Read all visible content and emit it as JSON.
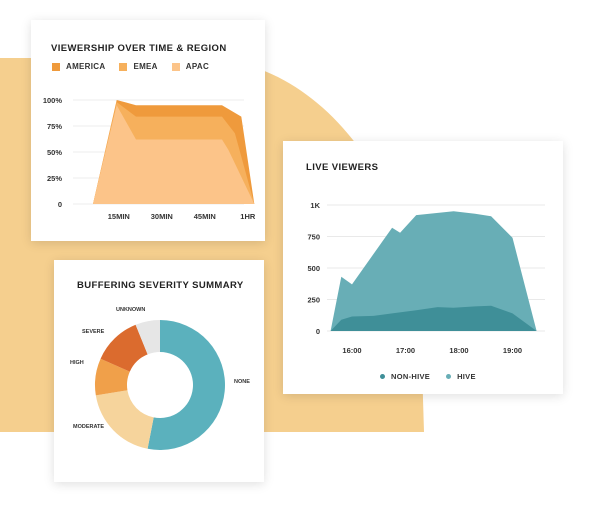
{
  "colors": {
    "background_shape": "#f5cf8e",
    "america": "#ef9a3c",
    "emea": "#f6b05c",
    "apac": "#fcc489",
    "non_hive": "#3f8f98",
    "hive": "#68aeb6",
    "donut_none": "#5bb1bd",
    "donut_moderate": "#f6d49c",
    "donut_high": "#f0a04a",
    "donut_severe": "#db6b2e",
    "donut_unknown": "#e6e6e6"
  },
  "chart_data": [
    {
      "type": "area",
      "title": "VIEWERSHIP OVER TIME & REGION",
      "categories": [
        "15MIN",
        "30MIN",
        "45MIN",
        "1HR"
      ],
      "y_ticks": [
        "100%",
        "75%",
        "50%",
        "25%",
        "0"
      ],
      "ylim": [
        0,
        100
      ],
      "legend": [
        "AMERICA",
        "EMEA",
        "APAC"
      ],
      "series": [
        {
          "name": "AMERICA",
          "x": [
            0,
            0.55,
            1,
            2,
            3,
            3.45,
            3.75
          ],
          "y": [
            0,
            100,
            95,
            95,
            95,
            84,
            0
          ]
        },
        {
          "name": "EMEA",
          "x": [
            0,
            0.55,
            1,
            2,
            3,
            3.3,
            3.75
          ],
          "y": [
            0,
            98,
            84,
            84,
            84,
            68,
            0
          ]
        },
        {
          "name": "APAC",
          "x": [
            0,
            0.55,
            1,
            2,
            3,
            3.15,
            3.75
          ],
          "y": [
            0,
            95,
            62,
            62,
            62,
            52,
            0
          ]
        }
      ]
    },
    {
      "type": "area",
      "title": "LIVE VIEWERS",
      "categories": [
        "16:00",
        "17:00",
        "18:00",
        "19:00"
      ],
      "y_ticks": [
        "1K",
        "750",
        "500",
        "250",
        "0"
      ],
      "ylim": [
        0,
        1000
      ],
      "legend": [
        "NON-HIVE",
        "HIVE"
      ],
      "series": [
        {
          "name": "HIVE",
          "x": [
            15.6,
            15.8,
            16.0,
            16.4,
            16.75,
            16.9,
            17.2,
            17.9,
            18.3,
            18.6,
            19.0,
            19.45
          ],
          "y": [
            0,
            430,
            370,
            610,
            820,
            780,
            920,
            950,
            930,
            910,
            740,
            0
          ]
        },
        {
          "name": "NON-HIVE",
          "x": [
            15.6,
            15.8,
            16.0,
            16.4,
            16.75,
            17.2,
            17.6,
            17.9,
            18.3,
            18.6,
            19.0,
            19.45
          ],
          "y": [
            0,
            90,
            115,
            120,
            140,
            165,
            190,
            185,
            195,
            200,
            140,
            0
          ]
        }
      ]
    },
    {
      "type": "pie",
      "title": "BUFFERING SEVERITY SUMMARY",
      "labels": [
        "NONE",
        "MODERATE",
        "HIGH",
        "SEVERE",
        "UNKNOWN"
      ],
      "values": [
        52,
        19,
        9,
        12,
        6
      ]
    }
  ]
}
